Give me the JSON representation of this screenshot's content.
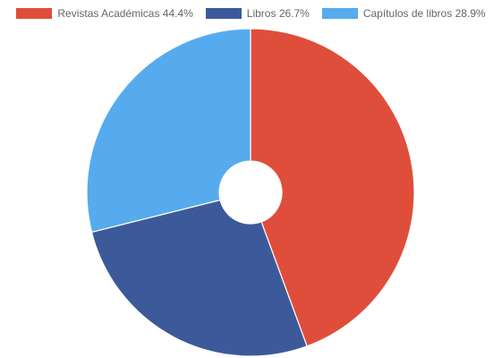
{
  "chart_data": {
    "type": "pie",
    "variant": "doughnut",
    "legend_position": "top",
    "categories": [
      "Revistas Académicas",
      "Libros",
      "Capítulos de libros"
    ],
    "values": [
      44.4,
      26.7,
      28.9
    ],
    "legend_labels": [
      "Revistas Académicas 44.4%",
      "Libros 26.7%",
      "Capítulos de libros 28.9%"
    ],
    "colors": [
      "#df4e3a",
      "#3c5a9a",
      "#56abee"
    ]
  }
}
